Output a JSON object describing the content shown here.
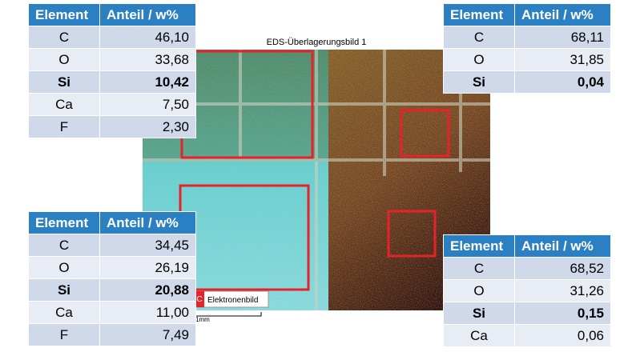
{
  "image": {
    "title": "EDS-Überlagerungsbild 1",
    "legend_letter": "C",
    "legend_label": "Elektronenbild",
    "scale_label": "1mm"
  },
  "tables": [
    {
      "header": [
        "Element",
        "Anteil / w%"
      ],
      "highlight_row": 2,
      "rows": [
        [
          "C",
          "46,10"
        ],
        [
          "O",
          "33,68"
        ],
        [
          "Si",
          "10,42"
        ],
        [
          "Ca",
          "7,50"
        ],
        [
          "F",
          "2,30"
        ]
      ]
    },
    {
      "header": [
        "Element",
        "Anteil / w%"
      ],
      "highlight_row": 2,
      "rows": [
        [
          "C",
          "68,11"
        ],
        [
          "O",
          "31,85"
        ],
        [
          "Si",
          "0,04"
        ]
      ]
    },
    {
      "header": [
        "Element",
        "Anteil / w%"
      ],
      "highlight_row": 2,
      "rows": [
        [
          "C",
          "34,45"
        ],
        [
          "O",
          "26,19"
        ],
        [
          "Si",
          "20,88"
        ],
        [
          "Ca",
          "11,00"
        ],
        [
          "F",
          "7,49"
        ]
      ]
    },
    {
      "header": [
        "Element",
        "Anteil / w%"
      ],
      "highlight_row": 2,
      "rows": [
        [
          "C",
          "68,52"
        ],
        [
          "O",
          "31,26"
        ],
        [
          "Si",
          "0,15"
        ],
        [
          "Ca",
          "0,06"
        ]
      ]
    }
  ]
}
